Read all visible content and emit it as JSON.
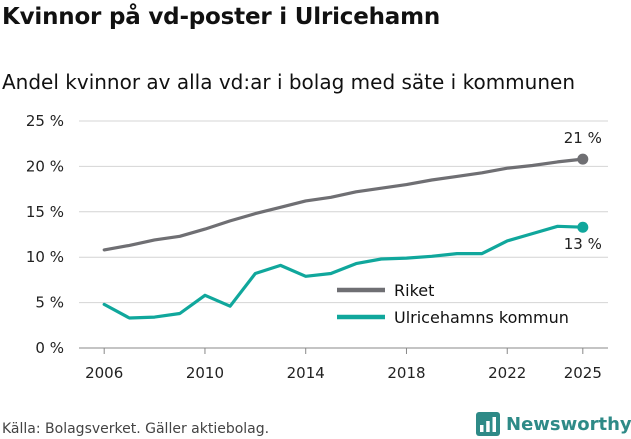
{
  "header": {
    "title": "Kvinnor på vd-poster i Ulricehamn",
    "subtitle": "Andel kvinnor av alla vd:ar i bolag med säte i kommunen"
  },
  "footer": {
    "source": "Källa: Bolagsverket. Gäller aktiebolag.",
    "brand": "Newsworthy"
  },
  "colors": {
    "riket": "#6f6f73",
    "kommun": "#10a79c",
    "grid": "#d4d4d4",
    "brand": "#2e8a87"
  },
  "chart_data": {
    "type": "line",
    "title": "Kvinnor på vd-poster i Ulricehamn",
    "subtitle": "Andel kvinnor av alla vd:ar i bolag med säte i kommunen",
    "xlabel": "",
    "ylabel": "",
    "ylim": [
      0,
      25
    ],
    "yticks": [
      0,
      5,
      10,
      15,
      20,
      25
    ],
    "ytick_labels": [
      "0 %",
      "5 %",
      "10 %",
      "15 %",
      "20 %",
      "25 %"
    ],
    "xlim": [
      2005,
      2026
    ],
    "xticks": [
      2006,
      2010,
      2014,
      2018,
      2022,
      2025
    ],
    "xtick_labels": [
      "2006",
      "2010",
      "2014",
      "2018",
      "2022",
      "2025"
    ],
    "grid": true,
    "legend": "bottom-right",
    "x": [
      2006,
      2007,
      2008,
      2009,
      2010,
      2011,
      2012,
      2013,
      2014,
      2015,
      2016,
      2017,
      2018,
      2019,
      2020,
      2021,
      2022,
      2023,
      2024,
      2025
    ],
    "series": [
      {
        "name": "Riket",
        "color": "#6f6f73",
        "end_label": "21 %",
        "values": [
          10.8,
          11.3,
          11.9,
          12.3,
          13.1,
          14.0,
          14.8,
          15.5,
          16.2,
          16.6,
          17.2,
          17.6,
          18.0,
          18.5,
          18.9,
          19.3,
          19.8,
          20.1,
          20.5,
          20.8
        ]
      },
      {
        "name": "Ulricehamns kommun",
        "color": "#10a79c",
        "end_label": "13 %",
        "values": [
          4.8,
          3.3,
          3.4,
          3.8,
          5.8,
          4.6,
          8.2,
          9.1,
          7.9,
          8.2,
          9.3,
          9.8,
          9.9,
          10.1,
          10.4,
          10.4,
          11.8,
          12.6,
          13.4,
          13.3
        ]
      }
    ]
  }
}
